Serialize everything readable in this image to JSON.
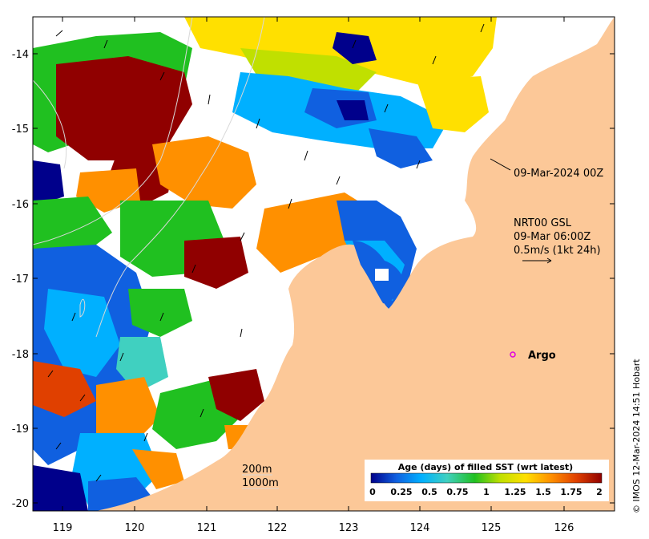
{
  "map": {
    "colors": {
      "land": "#fcc898",
      "ocean_nodata": "#ffffff",
      "frame": "#000000",
      "contour": "#d8d8d8",
      "argo_marker": "#e000e0"
    },
    "lat_ticks": [
      "-14",
      "-15",
      "-16",
      "-17",
      "-18",
      "-19",
      "-20"
    ],
    "lon_ticks": [
      "119",
      "120",
      "121",
      "122",
      "123",
      "124",
      "125",
      "126"
    ],
    "annotations": {
      "date_label": "09-Mar-2024 00Z",
      "current_product": "NRT00 GSL",
      "current_time": "09-Mar 06:00Z",
      "current_scale": "0.5m/s (1kt 24h)",
      "argo_label": "Argo",
      "isobath_200": "200m",
      "isobath_1000": "1000m"
    },
    "legend": {
      "title": "Age (days) of filled SST (wrt latest)",
      "tick_labels": [
        "0",
        "0.25",
        "0.5",
        "0.75",
        "1",
        "1.25",
        "1.5",
        "1.75",
        "2"
      ],
      "gradient_colors": [
        "#00008b",
        "#1060e0",
        "#00b0ff",
        "#40d0c0",
        "#20c020",
        "#c0e000",
        "#ffe000",
        "#ff9000",
        "#e04000",
        "#900000"
      ]
    },
    "credit": "© IMOS 12-Mar-2024 14:51 Hobart",
    "icons": [
      "argo-float-icon",
      "current-vector-arrow-icon"
    ]
  }
}
